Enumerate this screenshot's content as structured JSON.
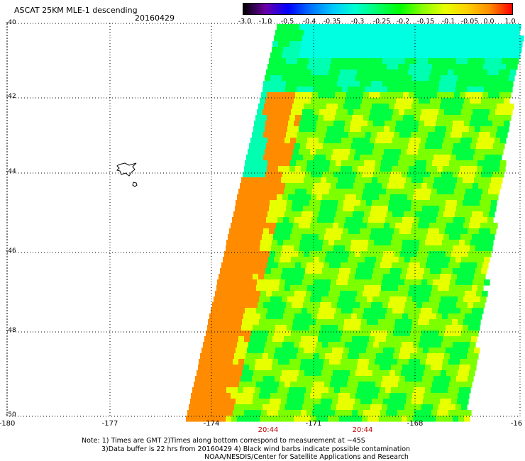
{
  "header": {
    "title": "ASCAT 25KM MLE-1 descending",
    "date": "20160429"
  },
  "colorbar": {
    "labels": [
      "-3.0",
      "-1.0",
      "-0.5",
      "-0.4",
      "-0.35",
      "-0.3",
      "-0.25",
      "-0.2",
      "-0.15",
      "-0.1",
      "-0.05",
      "0.0",
      "1.0"
    ],
    "colors": [
      "#000000",
      "#6a00a8",
      "#0000ff",
      "#0070ff",
      "#00c8ff",
      "#00ffd0",
      "#00ff6a",
      "#00ff00",
      "#8aff00",
      "#e8ff00",
      "#ffd000",
      "#ff8c00",
      "#ff0000"
    ]
  },
  "map": {
    "lat_labels": [
      "-40",
      "-42",
      "-44",
      "-46",
      "-48",
      "-50"
    ],
    "lon_labels": [
      "-180",
      "-177",
      "-174",
      "-171",
      "-168",
      "-16"
    ],
    "time_labels": [
      "20:44",
      "20:44"
    ],
    "swath_colors": {
      "cyan": "#00ffe0",
      "aqua": "#00ffb0",
      "green": "#00ff40",
      "lime": "#7cff00",
      "yellow": "#e8ff00",
      "orange": "#ff8c00",
      "dark_orange": "#ff7000"
    }
  },
  "notes": {
    "line1": "Note: 1) Times are GMT 2)Times along bottom correspond to measurement at ~45S",
    "line2": "3)Data buffer is 22 hrs from 20160429 4) Black wind barbs indicate possible contamination",
    "line3": "NOAA/NESDIS/Center for Satellite Applications and Research"
  }
}
